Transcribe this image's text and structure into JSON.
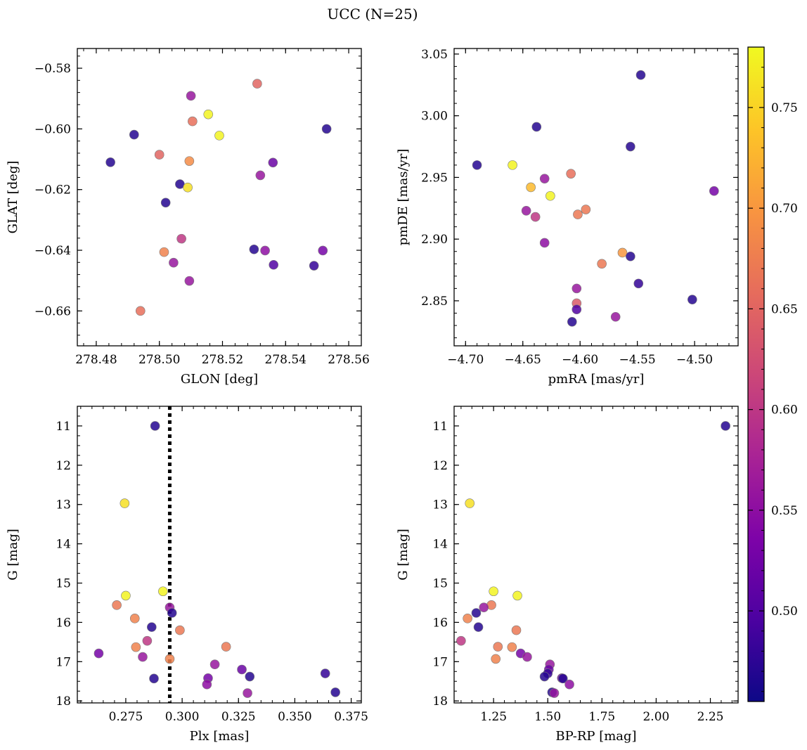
{
  "figure_title": "UCC (N=25)",
  "colors": {
    "point_edge": "#7a7a7a",
    "background": "#ffffff"
  },
  "colorbar": {
    "min": 0.455,
    "max": 0.78,
    "ticks": [
      0.5,
      0.55,
      0.6,
      0.65,
      0.7,
      0.75
    ],
    "tick_labels": [
      "0.50",
      "0.55",
      "0.60",
      "0.65",
      "0.70",
      "0.75"
    ],
    "colormap": "plasma"
  },
  "chart_data": [
    {
      "type": "scatter",
      "xlabel": "GLON [deg]",
      "ylabel": "GLAT [deg]",
      "xlim": [
        278.474,
        278.564
      ],
      "ylim": [
        -0.6715,
        -0.5735
      ],
      "x_ticks": [
        278.48,
        278.5,
        278.52,
        278.54,
        278.56
      ],
      "x_tick_labels": [
        "278.48",
        "278.50",
        "278.52",
        "278.54",
        "278.56"
      ],
      "y_ticks": [
        -0.58,
        -0.6,
        -0.62,
        -0.64,
        -0.66
      ],
      "y_tick_labels": [
        "−0.58",
        "−0.60",
        "−0.62",
        "−0.64",
        "−0.66"
      ],
      "y_inverted": false,
      "points": [
        {
          "x": 278.4845,
          "y": -0.611,
          "c": 0.47
        },
        {
          "x": 278.492,
          "y": -0.6019,
          "c": 0.47
        },
        {
          "x": 278.5,
          "y": -0.6085,
          "c": 0.65
        },
        {
          "x": 278.502,
          "y": -0.6243,
          "c": 0.47
        },
        {
          "x": 278.5015,
          "y": -0.6406,
          "c": 0.68
        },
        {
          "x": 278.494,
          "y": -0.66,
          "c": 0.66
        },
        {
          "x": 278.5045,
          "y": -0.6441,
          "c": 0.56
        },
        {
          "x": 278.5065,
          "y": -0.6182,
          "c": 0.47
        },
        {
          "x": 278.509,
          "y": -0.6193,
          "c": 0.76
        },
        {
          "x": 278.507,
          "y": -0.6362,
          "c": 0.6
        },
        {
          "x": 278.5095,
          "y": -0.6106,
          "c": 0.69
        },
        {
          "x": 278.51,
          "y": -0.5891,
          "c": 0.56
        },
        {
          "x": 278.5105,
          "y": -0.5975,
          "c": 0.66
        },
        {
          "x": 278.5095,
          "y": -0.6501,
          "c": 0.56
        },
        {
          "x": 278.5155,
          "y": -0.5952,
          "c": 0.775
        },
        {
          "x": 278.519,
          "y": -0.6022,
          "c": 0.775
        },
        {
          "x": 278.531,
          "y": -0.5851,
          "c": 0.65
        },
        {
          "x": 278.532,
          "y": -0.6153,
          "c": 0.56
        },
        {
          "x": 278.53,
          "y": -0.6397,
          "c": 0.47
        },
        {
          "x": 278.5335,
          "y": -0.6401,
          "c": 0.55
        },
        {
          "x": 278.536,
          "y": -0.6111,
          "c": 0.52
        },
        {
          "x": 278.5362,
          "y": -0.6448,
          "c": 0.5
        },
        {
          "x": 278.549,
          "y": -0.6451,
          "c": 0.48
        },
        {
          "x": 278.5518,
          "y": -0.6401,
          "c": 0.53
        },
        {
          "x": 278.553,
          "y": -0.6,
          "c": 0.47
        }
      ]
    },
    {
      "type": "scatter",
      "xlabel": "pmRA [mas/yr]",
      "ylabel": "pmDE [mas/yr]",
      "xlim": [
        -4.71,
        -4.462
      ],
      "ylim": [
        2.8135,
        3.0545
      ],
      "x_ticks": [
        -4.7,
        -4.65,
        -4.6,
        -4.55,
        -4.5
      ],
      "x_tick_labels": [
        "−4.70",
        "−4.65",
        "−4.60",
        "−4.55",
        "−4.50"
      ],
      "y_ticks": [
        2.85,
        2.9,
        2.95,
        3.0,
        3.05
      ],
      "y_tick_labels": [
        "2.85",
        "2.90",
        "2.95",
        "3.00",
        "3.05"
      ],
      "y_inverted": false,
      "points": [
        {
          "x": -4.69,
          "y": 2.96,
          "c": 0.47
        },
        {
          "x": -4.659,
          "y": 2.96,
          "c": 0.775
        },
        {
          "x": -4.643,
          "y": 2.942,
          "c": 0.73
        },
        {
          "x": -4.638,
          "y": 2.991,
          "c": 0.47
        },
        {
          "x": -4.647,
          "y": 2.923,
          "c": 0.56
        },
        {
          "x": -4.639,
          "y": 2.918,
          "c": 0.6
        },
        {
          "x": -4.631,
          "y": 2.949,
          "c": 0.56
        },
        {
          "x": -4.626,
          "y": 2.935,
          "c": 0.775
        },
        {
          "x": -4.631,
          "y": 2.897,
          "c": 0.55
        },
        {
          "x": -4.608,
          "y": 2.953,
          "c": 0.66
        },
        {
          "x": -4.602,
          "y": 2.92,
          "c": 0.67
        },
        {
          "x": -4.595,
          "y": 2.924,
          "c": 0.67
        },
        {
          "x": -4.603,
          "y": 2.86,
          "c": 0.56
        },
        {
          "x": -4.603,
          "y": 2.848,
          "c": 0.64
        },
        {
          "x": -4.603,
          "y": 2.843,
          "c": 0.5
        },
        {
          "x": -4.607,
          "y": 2.833,
          "c": 0.47
        },
        {
          "x": -4.581,
          "y": 2.88,
          "c": 0.67
        },
        {
          "x": -4.569,
          "y": 2.837,
          "c": 0.56
        },
        {
          "x": -4.563,
          "y": 2.889,
          "c": 0.7
        },
        {
          "x": -4.556,
          "y": 2.886,
          "c": 0.47
        },
        {
          "x": -4.556,
          "y": 2.975,
          "c": 0.47
        },
        {
          "x": -4.549,
          "y": 2.864,
          "c": 0.48
        },
        {
          "x": -4.547,
          "y": 3.033,
          "c": 0.47
        },
        {
          "x": -4.502,
          "y": 2.851,
          "c": 0.47
        },
        {
          "x": -4.483,
          "y": 2.939,
          "c": 0.53
        }
      ]
    },
    {
      "type": "scatter",
      "xlabel": "Plx [mas]",
      "ylabel": "G [mag]",
      "xlim": [
        0.2535,
        0.3795
      ],
      "ylim": [
        18.05,
        10.5
      ],
      "x_ticks": [
        0.275,
        0.3,
        0.325,
        0.35,
        0.375
      ],
      "x_tick_labels": [
        "0.275",
        "0.300",
        "0.325",
        "0.350",
        "0.375"
      ],
      "y_ticks": [
        11,
        12,
        13,
        14,
        15,
        16,
        17,
        18
      ],
      "y_tick_labels": [
        "11",
        "12",
        "13",
        "14",
        "15",
        "16",
        "17",
        "18"
      ],
      "y_inverted": true,
      "vline": {
        "x": 0.2945,
        "style": "dotted",
        "color": "#000000"
      },
      "points": [
        {
          "x": 0.288,
          "y": 11.0,
          "c": 0.47
        },
        {
          "x": 0.2745,
          "y": 12.97,
          "c": 0.76
        },
        {
          "x": 0.275,
          "y": 15.32,
          "c": 0.775
        },
        {
          "x": 0.2915,
          "y": 15.21,
          "c": 0.775
        },
        {
          "x": 0.271,
          "y": 15.56,
          "c": 0.67
        },
        {
          "x": 0.279,
          "y": 15.9,
          "c": 0.68
        },
        {
          "x": 0.2865,
          "y": 16.12,
          "c": 0.47
        },
        {
          "x": 0.2845,
          "y": 16.47,
          "c": 0.6
        },
        {
          "x": 0.2795,
          "y": 16.63,
          "c": 0.68
        },
        {
          "x": 0.2825,
          "y": 16.88,
          "c": 0.56
        },
        {
          "x": 0.263,
          "y": 16.79,
          "c": 0.53
        },
        {
          "x": 0.2875,
          "y": 17.43,
          "c": 0.47
        },
        {
          "x": 0.2945,
          "y": 15.62,
          "c": 0.56
        },
        {
          "x": 0.2955,
          "y": 15.76,
          "c": 0.47
        },
        {
          "x": 0.2945,
          "y": 16.93,
          "c": 0.68
        },
        {
          "x": 0.299,
          "y": 16.2,
          "c": 0.67
        },
        {
          "x": 0.3195,
          "y": 16.62,
          "c": 0.67
        },
        {
          "x": 0.3145,
          "y": 17.07,
          "c": 0.56
        },
        {
          "x": 0.3115,
          "y": 17.42,
          "c": 0.53
        },
        {
          "x": 0.311,
          "y": 17.58,
          "c": 0.55
        },
        {
          "x": 0.3265,
          "y": 17.2,
          "c": 0.52
        },
        {
          "x": 0.33,
          "y": 17.38,
          "c": 0.47
        },
        {
          "x": 0.329,
          "y": 17.8,
          "c": 0.56
        },
        {
          "x": 0.3635,
          "y": 17.3,
          "c": 0.48
        },
        {
          "x": 0.368,
          "y": 17.78,
          "c": 0.47
        }
      ]
    },
    {
      "type": "scatter",
      "xlabel": "BP-RP [mag]",
      "ylabel": "G [mag]",
      "xlim": [
        1.068,
        2.378
      ],
      "ylim": [
        18.05,
        10.5
      ],
      "x_ticks": [
        1.25,
        1.5,
        1.75,
        2.0,
        2.25
      ],
      "x_tick_labels": [
        "1.25",
        "1.50",
        "1.75",
        "2.00",
        "2.25"
      ],
      "y_ticks": [
        11,
        12,
        13,
        14,
        15,
        16,
        17,
        18
      ],
      "y_tick_labels": [
        "11",
        "12",
        "13",
        "14",
        "15",
        "16",
        "17",
        "18"
      ],
      "y_inverted": true,
      "points": [
        {
          "x": 2.32,
          "y": 11.0,
          "c": 0.47
        },
        {
          "x": 1.14,
          "y": 12.97,
          "c": 0.76
        },
        {
          "x": 1.25,
          "y": 15.21,
          "c": 0.775
        },
        {
          "x": 1.36,
          "y": 15.32,
          "c": 0.775
        },
        {
          "x": 1.24,
          "y": 15.56,
          "c": 0.67
        },
        {
          "x": 1.205,
          "y": 15.62,
          "c": 0.56
        },
        {
          "x": 1.17,
          "y": 15.76,
          "c": 0.47
        },
        {
          "x": 1.13,
          "y": 15.9,
          "c": 0.68
        },
        {
          "x": 1.18,
          "y": 16.12,
          "c": 0.47
        },
        {
          "x": 1.355,
          "y": 16.2,
          "c": 0.67
        },
        {
          "x": 1.1,
          "y": 16.47,
          "c": 0.6
        },
        {
          "x": 1.27,
          "y": 16.62,
          "c": 0.67
        },
        {
          "x": 1.335,
          "y": 16.63,
          "c": 0.68
        },
        {
          "x": 1.375,
          "y": 16.79,
          "c": 0.53
        },
        {
          "x": 1.405,
          "y": 16.88,
          "c": 0.56
        },
        {
          "x": 1.26,
          "y": 16.93,
          "c": 0.68
        },
        {
          "x": 1.51,
          "y": 17.07,
          "c": 0.56
        },
        {
          "x": 1.505,
          "y": 17.2,
          "c": 0.52
        },
        {
          "x": 1.5,
          "y": 17.3,
          "c": 0.48
        },
        {
          "x": 1.485,
          "y": 17.38,
          "c": 0.47
        },
        {
          "x": 1.565,
          "y": 17.42,
          "c": 0.53
        },
        {
          "x": 1.57,
          "y": 17.43,
          "c": 0.47
        },
        {
          "x": 1.6,
          "y": 17.58,
          "c": 0.55
        },
        {
          "x": 1.52,
          "y": 17.78,
          "c": 0.47
        },
        {
          "x": 1.53,
          "y": 17.8,
          "c": 0.56
        }
      ]
    }
  ]
}
